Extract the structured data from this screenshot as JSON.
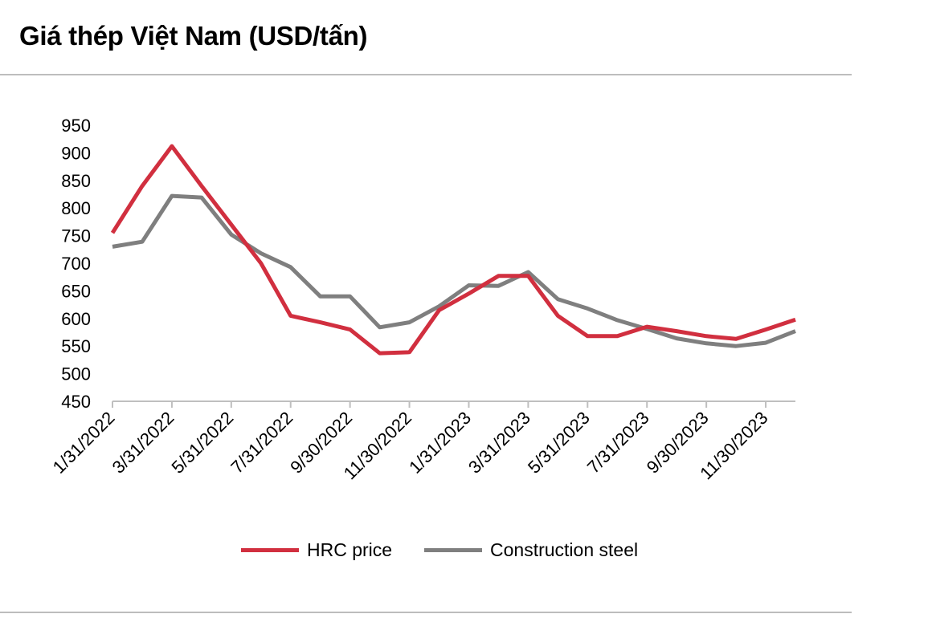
{
  "title": "Giá thép Việt Nam (USD/tấn)",
  "colors": {
    "hrc": "#d12f3f",
    "construction": "#7f7f7f",
    "axis": "#bfbfbf"
  },
  "chart_data": {
    "type": "line",
    "title": "Giá thép Việt Nam (USD/tấn)",
    "xlabel": "",
    "ylabel": "",
    "ylim": [
      450,
      950
    ],
    "yticks": [
      450,
      500,
      550,
      600,
      650,
      700,
      750,
      800,
      850,
      900,
      950
    ],
    "grid": false,
    "legend_position": "bottom",
    "categories": [
      "1/31/2022",
      "2/28/2022",
      "3/31/2022",
      "4/30/2022",
      "5/31/2022",
      "6/30/2022",
      "7/31/2022",
      "8/31/2022",
      "9/30/2022",
      "10/31/2022",
      "11/30/2022",
      "12/31/2022",
      "1/31/2023",
      "2/28/2023",
      "3/31/2023",
      "4/30/2023",
      "5/31/2023",
      "6/30/2023",
      "7/31/2023",
      "8/31/2023",
      "9/30/2023",
      "10/31/2023",
      "11/30/2023",
      "12/31/2023"
    ],
    "xtick_labels": [
      "1/31/2022",
      "3/31/2022",
      "5/31/2022",
      "7/31/2022",
      "9/30/2022",
      "11/30/2022",
      "1/31/2023",
      "3/31/2023",
      "5/31/2023",
      "7/31/2023",
      "9/30/2023",
      "11/30/2023"
    ],
    "series": [
      {
        "name": "HRC price",
        "color": "#d12f3f",
        "values": [
          755,
          840,
          912,
          840,
          770,
          700,
          605,
          593,
          580,
          537,
          539,
          615,
          645,
          677,
          677,
          605,
          568,
          568,
          585,
          577,
          568,
          563,
          580,
          598
        ]
      },
      {
        "name": "Construction steel",
        "color": "#7f7f7f",
        "values": [
          730,
          739,
          822,
          819,
          752,
          718,
          693,
          640,
          640,
          584,
          593,
          622,
          660,
          659,
          684,
          635,
          618,
          597,
          581,
          564,
          555,
          550,
          556,
          577
        ]
      }
    ]
  }
}
